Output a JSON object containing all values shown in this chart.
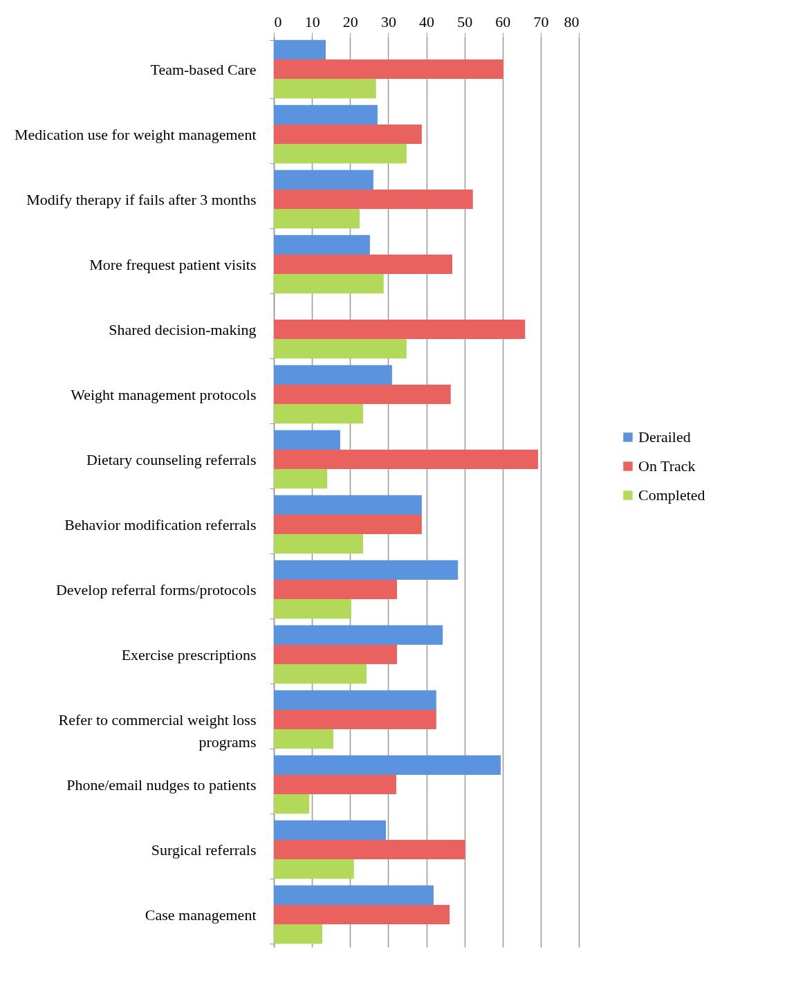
{
  "chart_data": {
    "type": "bar",
    "orientation": "horizontal",
    "categories": [
      "Team-based Care",
      "Medication use for weight management",
      "Modify therapy if fails after 3 months",
      "More frequest patient visits",
      "Shared decision-making",
      "Weight management protocols",
      "Dietary counseling referrals",
      "Behavior modification referrals",
      "Develop referral forms/protocols",
      "Exercise prescriptions",
      "Refer to commercial weight loss programs",
      "Phone/email nudges to patients",
      "Surgical referrals",
      "Case management"
    ],
    "series": [
      {
        "name": "Derailed",
        "color": "#5b93de",
        "values": [
          13.6,
          27.2,
          26.1,
          25.2,
          null,
          31,
          17.4,
          38.8,
          48.3,
          44.3,
          42.6,
          59.5,
          29.4,
          41.9
        ]
      },
      {
        "name": "On Track",
        "color": "#e9625f",
        "values": [
          60.2,
          38.8,
          52.2,
          46.8,
          65.9,
          46.4,
          69.3,
          38.8,
          32.3,
          32.3,
          42.6,
          32.1,
          50.2,
          46.1
        ]
      },
      {
        "name": "Completed",
        "color": "#b3d95a",
        "values": [
          26.8,
          34.8,
          22.5,
          28.8,
          34.8,
          23.4,
          14,
          23.4,
          20.3,
          24.3,
          15.6,
          9.3,
          21,
          12.7
        ]
      }
    ],
    "xlim": [
      0,
      80
    ],
    "xticks": [
      0,
      10,
      20,
      30,
      40,
      50,
      60,
      70,
      80
    ],
    "grid": "x",
    "legend": "right"
  }
}
